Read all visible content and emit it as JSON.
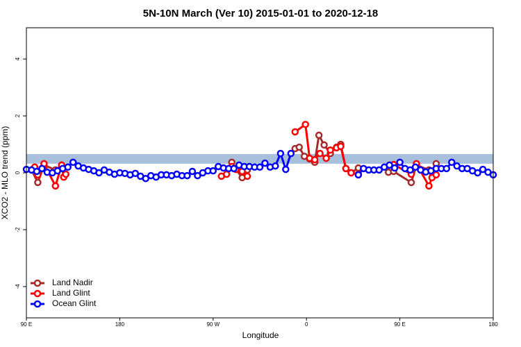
{
  "chart_data": {
    "type": "line",
    "title": "5N-10N March (Ver 10)   2015-01-01 to 2020-12-18",
    "x_label": "Longitude",
    "y_label": "XCO2 - MLO trend (ppm)",
    "xlim": [
      90,
      540
    ],
    "ylim": [
      -5.1,
      5.1
    ],
    "xticks": [
      {
        "value": 90,
        "label": "90 E"
      },
      {
        "value": 180,
        "label": "180"
      },
      {
        "value": 270,
        "label": "90 W"
      },
      {
        "value": 360,
        "label": "0"
      },
      {
        "value": 450,
        "label": "90 E"
      },
      {
        "value": 540,
        "label": "180"
      }
    ],
    "yticks": [
      -4,
      -2,
      0,
      2,
      4
    ],
    "band": {
      "ylim": [
        0.32,
        0.66
      ],
      "color": "#a9c0dd"
    },
    "legend": "bottom-left",
    "series": [
      {
        "name": "Land Nadir",
        "color": "#a52a2a",
        "x": [
          95,
          101,
          107,
          118,
          124,
          126,
          128,
          null,
          288,
          292,
          298,
          303,
          null,
          349,
          353,
          358,
          363,
          368,
          372,
          377,
          383,
          389,
          393,
          398,
          403,
          410,
          null,
          439,
          444,
          461,
          466,
          478,
          481,
          485
        ],
        "values": [
          0.1,
          -0.34,
          0.27,
          0.1,
          0.27,
          -0.15,
          -0.05,
          null,
          0.37,
          0.12,
          -0.17,
          0.1,
          null,
          0.85,
          0.9,
          0.58,
          0.49,
          0.37,
          1.32,
          0.98,
          0.68,
          0.9,
          1.0,
          0.15,
          0,
          0.17,
          null,
          0.02,
          0.05,
          -0.34,
          0.27,
          0.1,
          0.02,
          0.32
        ]
      },
      {
        "name": "Land Glint",
        "color": "#ff0000",
        "x": [
          98,
          101,
          107,
          118,
          124,
          126,
          128,
          null,
          278,
          283,
          288,
          292,
          298,
          303,
          null,
          349,
          359,
          363,
          368,
          373,
          379,
          383,
          389,
          393,
          398,
          403,
          410,
          null,
          444,
          461,
          466,
          478,
          481,
          485
        ],
        "values": [
          0.2,
          -0.07,
          0.32,
          -0.46,
          0.27,
          -0.15,
          -0.05,
          null,
          -0.12,
          -0.05,
          0.22,
          0.12,
          0.05,
          -0.12,
          null,
          1.44,
          1.7,
          0.51,
          0.46,
          0.68,
          0.51,
          0.8,
          0.88,
          0.93,
          0.15,
          0,
          -0.05,
          null,
          0.29,
          -0.05,
          0.32,
          -0.46,
          -0.17,
          -0.07
        ]
      },
      {
        "name": "Ocean Glint",
        "color": "#0000ff",
        "x": [
          90,
          95,
          100,
          105,
          110,
          115,
          120,
          125,
          130,
          135,
          140,
          145,
          150,
          155,
          160,
          165,
          170,
          175,
          180,
          185,
          190,
          195,
          200,
          205,
          210,
          215,
          220,
          225,
          230,
          235,
          240,
          245,
          250,
          255,
          260,
          265,
          270,
          275,
          280,
          285,
          290,
          295,
          300,
          305,
          310,
          315,
          320,
          325,
          330,
          335,
          340,
          345,
          null,
          410,
          415,
          420,
          425,
          430,
          435,
          440,
          445,
          450,
          455,
          460,
          465,
          470,
          475,
          480,
          485,
          490,
          495,
          500,
          505,
          510,
          515,
          520,
          525,
          530,
          535,
          540
        ],
        "values": [
          0.12,
          0.1,
          0.05,
          0.15,
          0.02,
          0,
          0.07,
          0.15,
          0.2,
          0.37,
          0.24,
          0.17,
          0.12,
          0.07,
          0,
          0.1,
          0.02,
          -0.05,
          0,
          -0.02,
          -0.07,
          -0.02,
          -0.12,
          -0.2,
          -0.1,
          -0.15,
          -0.07,
          -0.07,
          -0.1,
          -0.05,
          -0.1,
          -0.1,
          0.05,
          -0.1,
          0,
          0.07,
          0.07,
          0.22,
          0.17,
          0.15,
          0.15,
          0.27,
          0.22,
          0.22,
          0.2,
          0.2,
          0.34,
          0.2,
          0.24,
          0.68,
          0.12,
          0.68,
          null,
          -0.07,
          0.15,
          0.1,
          0.1,
          0.1,
          0.2,
          0.27,
          0.17,
          0.37,
          0.15,
          0.1,
          0.2,
          0.1,
          0.03,
          0.07,
          0.15,
          0.15,
          0.15,
          0.37,
          0.24,
          0.15,
          0.15,
          0.07,
          0,
          0.12,
          0.02,
          -0.07
        ]
      }
    ]
  }
}
